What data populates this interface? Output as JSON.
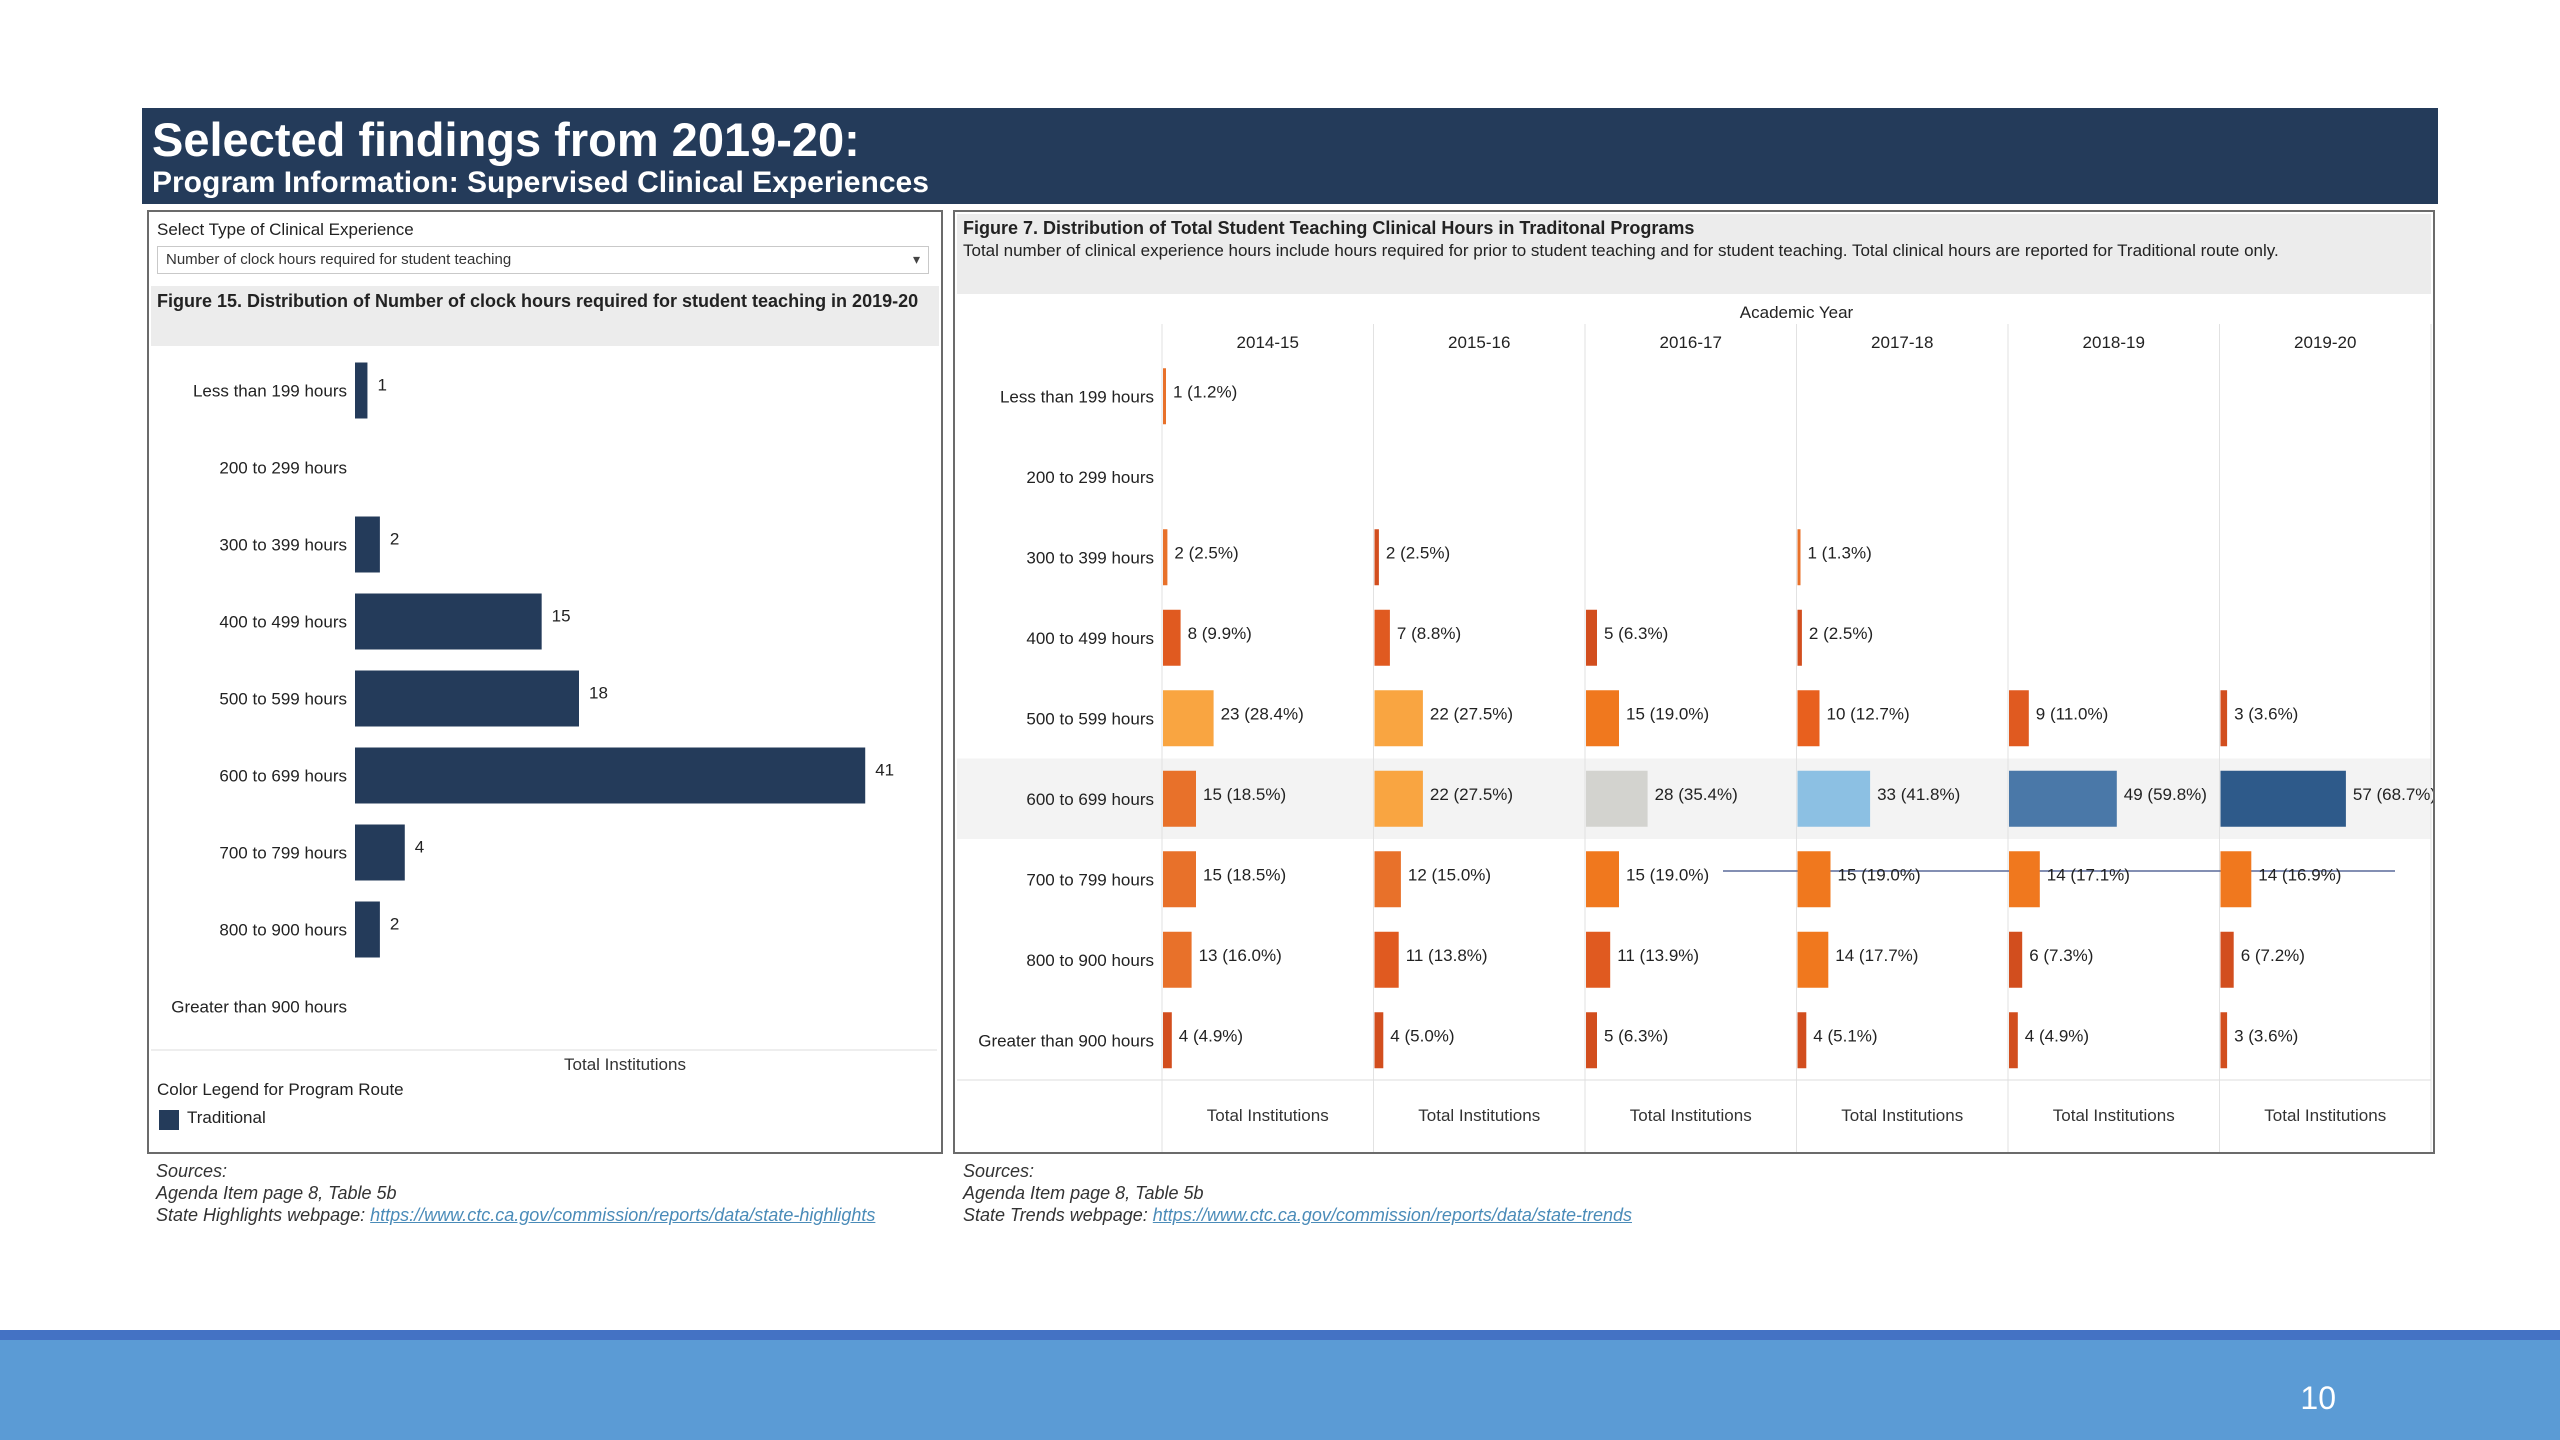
{
  "header": {
    "title": "Selected findings from 2019-20:",
    "subtitle": "Program Information: Supervised Clinical Experiences"
  },
  "left": {
    "select_label": "Select Type of Clinical Experience",
    "select_value": "Number of clock hours required for student teaching",
    "figure_title": "Figure 15. Distribution of Number of clock hours required for student teaching in 2019-20",
    "legend_title": "Color Legend for Program Route",
    "legend_item": "Traditional",
    "sources_label": "Sources:",
    "source_line1": "Agenda Item page 8, Table 5b",
    "source_line2_prefix": "State Highlights webpage:",
    "source_link": "https://www.ctc.ca.gov/commission/reports/data/state-highlights"
  },
  "right": {
    "figure_title": "Figure 7. Distribution of Total Student Teaching Clinical Hours in Traditonal Programs",
    "figure_desc": "Total number of clinical experience hours include hours required for prior to student teaching and for student teaching. Total clinical hours are reported for Traditional route only.",
    "sources_label": "Sources:",
    "source_line1": "Agenda Item page 8, Table 5b",
    "source_line2_prefix": "State Trends webpage:",
    "source_link": "https://www.ctc.ca.gov/commission/reports/data/state-trends"
  },
  "page_number": "10",
  "chart_data": [
    {
      "type": "bar",
      "orientation": "horizontal",
      "title": "Figure 15. Distribution of Number of clock hours required for student teaching in 2019-20",
      "xlabel": "Total Institutions",
      "categories": [
        "Less than 199 hours",
        "200 to 299 hours",
        "300 to 399 hours",
        "400 to 499 hours",
        "500 to 599 hours",
        "600 to 699 hours",
        "700 to 799 hours",
        "800 to 900 hours",
        "Greater than 900 hours"
      ],
      "values": [
        1,
        null,
        2,
        15,
        18,
        41,
        4,
        2,
        null
      ],
      "labels": [
        "1",
        "",
        "2",
        "15",
        "18",
        "41",
        "4",
        "2",
        ""
      ],
      "xlim": [
        0,
        45
      ],
      "color": "#243b5a"
    },
    {
      "type": "bar",
      "orientation": "horizontal",
      "title": "Figure 7. Distribution of Total Student Teaching Clinical Hours in Traditonal Programs",
      "column_header": "Academic Year",
      "xlabel": "Total Institutions",
      "categories": [
        "Less than 199 hours",
        "200 to 299 hours",
        "300 to 399 hours",
        "400 to 499 hours",
        "500 to 599 hours",
        "600 to 699 hours",
        "700 to 799 hours",
        "800 to 900 hours",
        "Greater than 900 hours"
      ],
      "highlight_row": "600 to 699 hours",
      "xlim": [
        0,
        70
      ],
      "series": [
        {
          "name": "2014-15",
          "values": [
            1,
            null,
            2,
            8,
            23,
            15,
            15,
            13,
            4
          ],
          "labels": [
            "1 (1.2%)",
            "",
            "2 (2.5%)",
            "8 (9.9%)",
            "23 (28.4%)",
            "15 (18.5%)",
            "15 (18.5%)",
            "13 (16.0%)",
            "4 (4.9%)"
          ],
          "colors": [
            "#e8712a",
            "#e8712a",
            "#e8712a",
            "#e05a20",
            "#f9a541",
            "#e8712a",
            "#e8712a",
            "#e8712a",
            "#d24e1e"
          ]
        },
        {
          "name": "2015-16",
          "values": [
            null,
            null,
            2,
            7,
            22,
            22,
            12,
            11,
            4
          ],
          "labels": [
            "",
            "",
            "2 (2.5%)",
            "7 (8.8%)",
            "22 (27.5%)",
            "22 (27.5%)",
            "12 (15.0%)",
            "11 (13.8%)",
            "4 (5.0%)"
          ],
          "colors": [
            "#e8712a",
            "#e8712a",
            "#d24e1e",
            "#e05a20",
            "#f9a541",
            "#f9a541",
            "#e8712a",
            "#e05a20",
            "#d24e1e"
          ]
        },
        {
          "name": "2016-17",
          "values": [
            null,
            null,
            null,
            5,
            15,
            28,
            15,
            11,
            5
          ],
          "labels": [
            "",
            "",
            "",
            "5 (6.3%)",
            "15 (19.0%)",
            "28 (35.4%)",
            "15 (19.0%)",
            "11 (13.9%)",
            "5 (6.3%)"
          ],
          "colors": [
            "#e8712a",
            "#e8712a",
            "#e8712a",
            "#d24e1e",
            "#f0781e",
            "#d3d3cf",
            "#f0781e",
            "#e05a20",
            "#d24e1e"
          ]
        },
        {
          "name": "2017-18",
          "values": [
            null,
            null,
            1,
            2,
            10,
            33,
            15,
            14,
            4
          ],
          "labels": [
            "",
            "",
            "1 (1.3%)",
            "2 (2.5%)",
            "10 (12.7%)",
            "33 (41.8%)",
            "15 (19.0%)",
            "14 (17.7%)",
            "4 (5.1%)"
          ],
          "colors": [
            "#e8712a",
            "#e8712a",
            "#e8712a",
            "#d24e1e",
            "#e8601e",
            "#8cc0e3",
            "#f0781e",
            "#f0781e",
            "#d24e1e"
          ]
        },
        {
          "name": "2018-19",
          "values": [
            null,
            null,
            null,
            null,
            9,
            49,
            14,
            6,
            4
          ],
          "labels": [
            "",
            "",
            "",
            "",
            "9 (11.0%)",
            "49 (59.8%)",
            "14 (17.1%)",
            "6 (7.3%)",
            "4 (4.9%)"
          ],
          "colors": [
            "#e8712a",
            "#e8712a",
            "#e8712a",
            "#e8712a",
            "#e05a20",
            "#4a78a8",
            "#f0781e",
            "#d24e1e",
            "#d24e1e"
          ]
        },
        {
          "name": "2019-20",
          "values": [
            null,
            null,
            null,
            null,
            3,
            57,
            14,
            6,
            3
          ],
          "labels": [
            "",
            "",
            "",
            "",
            "3 (3.6%)",
            "57 (68.7%)",
            "14 (16.9%)",
            "6 (7.2%)",
            "3 (3.6%)"
          ],
          "colors": [
            "#e8712a",
            "#e8712a",
            "#e8712a",
            "#e8712a",
            "#d24e1e",
            "#2e5a8a",
            "#f0781e",
            "#d24e1e",
            "#d24e1e"
          ]
        }
      ]
    }
  ]
}
